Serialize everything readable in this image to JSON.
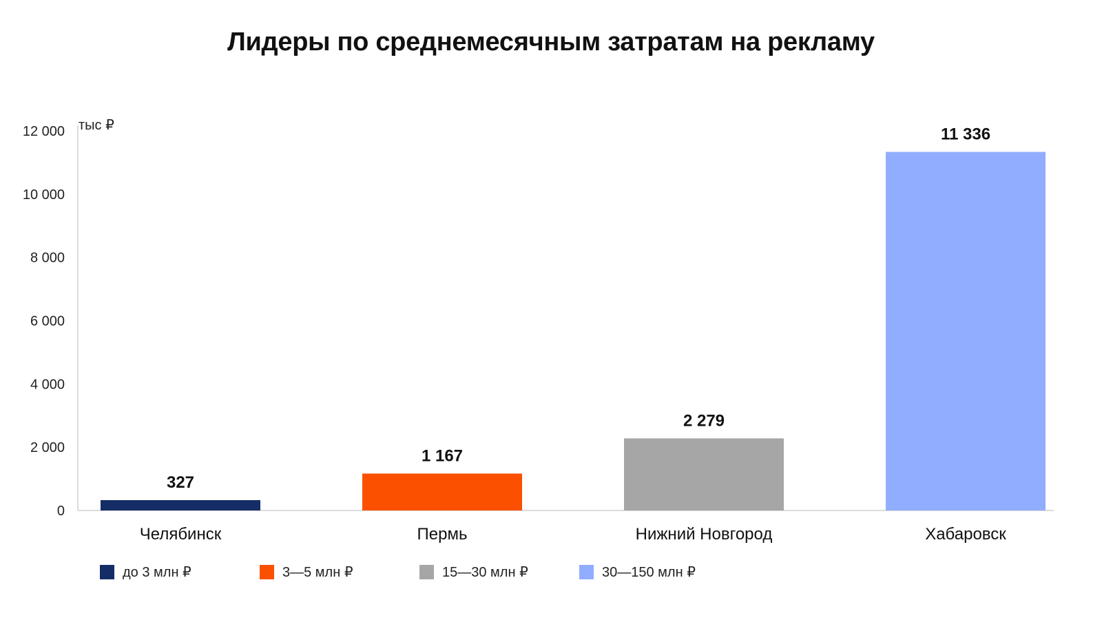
{
  "chart_data": {
    "type": "bar",
    "title": "Лидеры по среднемесячным затратам на рекламу",
    "unit_label": "тыс ₽",
    "ylim": [
      0,
      12000
    ],
    "yticks": [
      {
        "value": 0,
        "label": "0"
      },
      {
        "value": 2000,
        "label": "2 000"
      },
      {
        "value": 4000,
        "label": "4 000"
      },
      {
        "value": 6000,
        "label": "6 000"
      },
      {
        "value": 8000,
        "label": "8 000"
      },
      {
        "value": 10000,
        "label": "10 000"
      },
      {
        "value": 12000,
        "label": "12 000"
      }
    ],
    "categories": [
      "Челябинск",
      "Пермь",
      "Нижний Новгород",
      "Хабаровск"
    ],
    "values": [
      327,
      1167,
      2279,
      11336
    ],
    "value_labels": [
      "327",
      "1 167",
      "2 279",
      "11 336"
    ],
    "bar_colors": [
      "#142d66",
      "#fa5000",
      "#a6a6a6",
      "#91adff"
    ],
    "grid": false,
    "legend_position": "bottom-left",
    "legend": [
      {
        "label": "до 3 млн ₽",
        "color": "#142d66"
      },
      {
        "label": "3—5 млн ₽",
        "color": "#fa5000"
      },
      {
        "label": "15—30 млн ₽",
        "color": "#a6a6a6"
      },
      {
        "label": "30—150 млн ₽",
        "color": "#91adff"
      }
    ]
  }
}
